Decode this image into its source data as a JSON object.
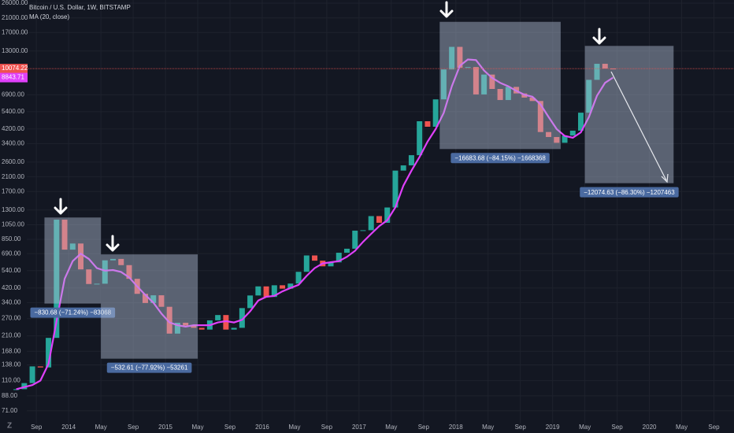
{
  "chart_data": {
    "type": "candlestick",
    "x": [
      "2013-06",
      "2013-07",
      "2013-08",
      "2013-09",
      "2013-10",
      "2013-11",
      "2013-12",
      "2014-01",
      "2014-02",
      "2014-03",
      "2014-04",
      "2014-05",
      "2014-06",
      "2014-07",
      "2014-08",
      "2014-09",
      "2014-10",
      "2014-11",
      "2014-12",
      "2015-01",
      "2015-02",
      "2015-03",
      "2015-04",
      "2015-05",
      "2015-06",
      "2015-07",
      "2015-08",
      "2015-09",
      "2015-10",
      "2015-11",
      "2015-12",
      "2016-01",
      "2016-02",
      "2016-03",
      "2016-04",
      "2016-05",
      "2016-06",
      "2016-07",
      "2016-08",
      "2016-09",
      "2016-10",
      "2016-11",
      "2016-12",
      "2017-01",
      "2017-02",
      "2017-03",
      "2017-04",
      "2017-05",
      "2017-06",
      "2017-07",
      "2017-08",
      "2017-09",
      "2017-10",
      "2017-11",
      "2017-12",
      "2018-01",
      "2018-02",
      "2018-03",
      "2018-04",
      "2018-05",
      "2018-06",
      "2018-07",
      "2018-08",
      "2018-09",
      "2018-10",
      "2018-11",
      "2018-12",
      "2019-01",
      "2019-02",
      "2019-03",
      "2019-04",
      "2019-05",
      "2019-06",
      "2019-07",
      "2019-08"
    ],
    "series": [
      {
        "name": "Bitcoin / U.S. Dollar, 1W, BITSTAMP",
        "up_color": "#26a69a",
        "down_color": "#ef5350",
        "values": [
          97,
          106,
          135,
          133,
          204,
          1130,
          732,
          800,
          550,
          445,
          447,
          627,
          640,
          585,
          480,
          386,
          338,
          378,
          320,
          217,
          254,
          244,
          236,
          230,
          263,
          284,
          230,
          236,
          314,
          377,
          430,
          369,
          437,
          416,
          448,
          531,
          673,
          624,
          575,
          609,
          700,
          742,
          964,
          970,
          1190,
          1080,
          1348,
          2300,
          2480,
          2875,
          4700,
          4340,
          6450,
          9950,
          13800,
          10200,
          10300,
          6930,
          9240,
          7500,
          6390,
          7730,
          7030,
          6620,
          6300,
          4020,
          3740,
          3440,
          3820,
          4100,
          5320,
          8560,
          10800,
          10080,
          10074.22
        ]
      },
      {
        "name": "MA (20, close)",
        "color": "#e040fb",
        "values": [
          97,
          100,
          103,
          110,
          140,
          260,
          480,
          620,
          690,
          640,
          560,
          540,
          545,
          530,
          490,
          430,
          380,
          340,
          290,
          255,
          245,
          240,
          245,
          245,
          245,
          255,
          260,
          255,
          265,
          300,
          350,
          370,
          375,
          400,
          420,
          440,
          500,
          560,
          600,
          610,
          620,
          660,
          720,
          820,
          920,
          1030,
          1120,
          1350,
          1850,
          2300,
          2800,
          3500,
          4200,
          5300,
          7800,
          10500,
          11500,
          11400,
          9800,
          8800,
          8200,
          7800,
          7300,
          6900,
          6700,
          6000,
          5000,
          4200,
          3800,
          3700,
          4000,
          5000,
          6800,
          8200,
          8843.71
        ]
      }
    ],
    "annotations": [
      {
        "from": "2013-10",
        "to": "2014-04",
        "top": 1166.06,
        "bottom": 335.38,
        "label": "−830.68 (−71.24%) −83068"
      },
      {
        "from": "2014-05",
        "to": "2015-04",
        "top": 683.52,
        "bottom": 150.91,
        "label": "−532.61 (−77.92%) −53261"
      },
      {
        "from": "2017-11",
        "to": "2019-01",
        "top": 19826.12,
        "bottom": 3142.44,
        "label": "−16683.68 (−84.15%) −1668368"
      },
      {
        "from": "2019-05",
        "to": "2020-03",
        "top": 13991.46,
        "bottom": 1916.83,
        "label": "−12074.63 (−86.30%) −1207463"
      }
    ],
    "log_scale": true,
    "grid": true,
    "xlim": [
      "2013-04",
      "2020-11"
    ],
    "ylim": [
      59,
      27200
    ],
    "xticks": [
      {
        "value": "2013-09",
        "label": "Sep"
      },
      {
        "value": "2014-01",
        "label": "2014"
      },
      {
        "value": "2014-05",
        "label": "May"
      },
      {
        "value": "2014-09",
        "label": "Sep"
      },
      {
        "value": "2015-01",
        "label": "2015"
      },
      {
        "value": "2015-05",
        "label": "May"
      },
      {
        "value": "2015-09",
        "label": "Sep"
      },
      {
        "value": "2016-01",
        "label": "2016"
      },
      {
        "value": "2016-05",
        "label": "May"
      },
      {
        "value": "2016-09",
        "label": "Sep"
      },
      {
        "value": "2017-01",
        "label": "2017"
      },
      {
        "value": "2017-05",
        "label": "May"
      },
      {
        "value": "2017-09",
        "label": "Sep"
      },
      {
        "value": "2018-01",
        "label": "2018"
      },
      {
        "value": "2018-05",
        "label": "May"
      },
      {
        "value": "2018-09",
        "label": "Sep"
      },
      {
        "value": "2019-01",
        "label": "2019"
      },
      {
        "value": "2019-05",
        "label": "May"
      },
      {
        "value": "2019-09",
        "label": "Sep"
      },
      {
        "value": "2020-01",
        "label": "2020"
      },
      {
        "value": "2020-05",
        "label": "May"
      },
      {
        "value": "2020-09",
        "label": "Sep"
      }
    ],
    "yticks": [
      {
        "value": 26000,
        "label": "26000.00"
      },
      {
        "value": 21000,
        "label": "21000.00"
      },
      {
        "value": 17000,
        "label": "17000.00"
      },
      {
        "value": 13000,
        "label": "13000.00"
      },
      {
        "value": 6900,
        "label": "6900.00"
      },
      {
        "value": 5400,
        "label": "5400.00"
      },
      {
        "value": 4200,
        "label": "4200.00"
      },
      {
        "value": 3400,
        "label": "3400.00"
      },
      {
        "value": 2600,
        "label": "2600.00"
      },
      {
        "value": 2100,
        "label": "2100.00"
      },
      {
        "value": 1700,
        "label": "1700.00"
      },
      {
        "value": 1300,
        "label": "1300.00"
      },
      {
        "value": 1050,
        "label": "1050.00"
      },
      {
        "value": 850,
        "label": "850.00"
      },
      {
        "value": 690,
        "label": "690.00"
      },
      {
        "value": 540,
        "label": "540.00"
      },
      {
        "value": 420,
        "label": "420.00"
      },
      {
        "value": 340,
        "label": "340.00"
      },
      {
        "value": 270,
        "label": "270.00"
      },
      {
        "value": 210,
        "label": "210.00"
      },
      {
        "value": 168,
        "label": "168.00"
      },
      {
        "value": 138,
        "label": "138.00"
      },
      {
        "value": 110,
        "label": "110.00"
      },
      {
        "value": 88,
        "label": "88.00"
      },
      {
        "value": 71,
        "label": "71.00"
      }
    ]
  }
}
